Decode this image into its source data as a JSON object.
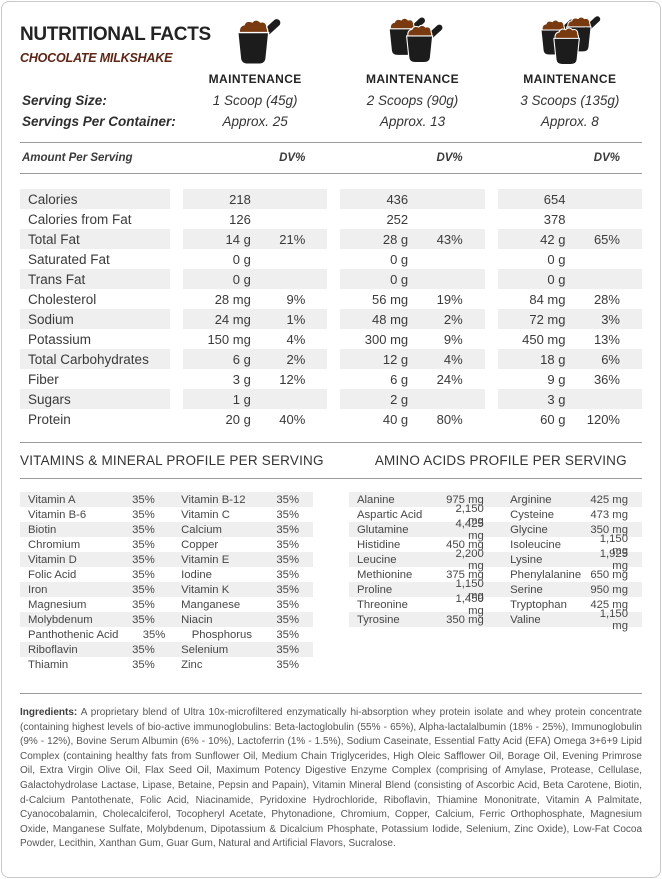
{
  "colors": {
    "accent-brown": "#5f2414",
    "powder-brown": "#7a3a10",
    "scoop-black": "#1c1c1c",
    "row-shade": "#efefef",
    "rule-gray": "#9b9b9b",
    "text-gray": "#3c3c3c"
  },
  "header": {
    "title": "NUTRITIONAL FACTS",
    "subtitle": "CHOCOLATE MILKSHAKE",
    "serving_size_label": "Serving Size:",
    "servings_per_container_label": "Servings Per Container:",
    "columns": [
      {
        "tier": "MAINTENANCE",
        "scoops": 1,
        "serving_size": "1 Scoop (45g)",
        "servings_per_container": "Approx. 25"
      },
      {
        "tier": "MAINTENANCE",
        "scoops": 2,
        "serving_size": "2 Scoops (90g)",
        "servings_per_container": "Approx. 13"
      },
      {
        "tier": "MAINTENANCE",
        "scoops": 3,
        "serving_size": "3 Scoops (135g)",
        "servings_per_container": "Approx. 8"
      }
    ]
  },
  "nutrition_table": {
    "header_label": "Amount Per Serving",
    "dv_label": "DV%",
    "rows": [
      {
        "label": "Calories",
        "cols": [
          {
            "value": "218",
            "dv": ""
          },
          {
            "value": "436",
            "dv": ""
          },
          {
            "value": "654",
            "dv": ""
          }
        ]
      },
      {
        "label": "Calories from Fat",
        "cols": [
          {
            "value": "126",
            "dv": ""
          },
          {
            "value": "252",
            "dv": ""
          },
          {
            "value": "378",
            "dv": ""
          }
        ]
      },
      {
        "label": "Total Fat",
        "cols": [
          {
            "value": "14 g",
            "dv": "21%"
          },
          {
            "value": "28 g",
            "dv": "43%"
          },
          {
            "value": "42 g",
            "dv": "65%"
          }
        ]
      },
      {
        "label": "Saturated Fat",
        "cols": [
          {
            "value": "0 g",
            "dv": ""
          },
          {
            "value": "0 g",
            "dv": ""
          },
          {
            "value": "0 g",
            "dv": ""
          }
        ]
      },
      {
        "label": "Trans Fat",
        "cols": [
          {
            "value": "0 g",
            "dv": ""
          },
          {
            "value": "0 g",
            "dv": ""
          },
          {
            "value": "0 g",
            "dv": ""
          }
        ]
      },
      {
        "label": "Cholesterol",
        "cols": [
          {
            "value": "28 mg",
            "dv": "9%"
          },
          {
            "value": "56 mg",
            "dv": "19%"
          },
          {
            "value": "84 mg",
            "dv": "28%"
          }
        ]
      },
      {
        "label": "Sodium",
        "cols": [
          {
            "value": "24 mg",
            "dv": "1%"
          },
          {
            "value": "48 mg",
            "dv": "2%"
          },
          {
            "value": "72 mg",
            "dv": "3%"
          }
        ]
      },
      {
        "label": "Potassium",
        "cols": [
          {
            "value": "150 mg",
            "dv": "4%"
          },
          {
            "value": "300 mg",
            "dv": "9%"
          },
          {
            "value": "450 mg",
            "dv": "13%"
          }
        ]
      },
      {
        "label": "Total Carbohydrates",
        "cols": [
          {
            "value": "6 g",
            "dv": "2%"
          },
          {
            "value": "12 g",
            "dv": "4%"
          },
          {
            "value": "18 g",
            "dv": "6%"
          }
        ]
      },
      {
        "label": "Fiber",
        "cols": [
          {
            "value": "3 g",
            "dv": "12%"
          },
          {
            "value": "6 g",
            "dv": "24%"
          },
          {
            "value": "9 g",
            "dv": "36%"
          }
        ]
      },
      {
        "label": "Sugars",
        "cols": [
          {
            "value": "1 g",
            "dv": ""
          },
          {
            "value": "2 g",
            "dv": ""
          },
          {
            "value": "3 g",
            "dv": ""
          }
        ]
      },
      {
        "label": "Protein",
        "cols": [
          {
            "value": "20 g",
            "dv": "40%"
          },
          {
            "value": "40 g",
            "dv": "80%"
          },
          {
            "value": "60 g",
            "dv": "120%"
          }
        ]
      }
    ]
  },
  "vitamins": {
    "heading": "VITAMINS & MINERAL PROFILE PER SERVING",
    "rows": [
      [
        {
          "name": "Vitamin A",
          "value": "35%"
        },
        {
          "name": "Vitamin B-12",
          "value": "35%"
        }
      ],
      [
        {
          "name": "Vitamin B-6",
          "value": "35%"
        },
        {
          "name": "Vitamin C",
          "value": "35%"
        }
      ],
      [
        {
          "name": "Biotin",
          "value": "35%"
        },
        {
          "name": "Calcium",
          "value": "35%"
        }
      ],
      [
        {
          "name": "Chromium",
          "value": "35%"
        },
        {
          "name": "Copper",
          "value": "35%"
        }
      ],
      [
        {
          "name": "Vitamin D",
          "value": "35%"
        },
        {
          "name": "Vitamin E",
          "value": "35%"
        }
      ],
      [
        {
          "name": "Folic Acid",
          "value": "35%"
        },
        {
          "name": "Iodine",
          "value": "35%"
        }
      ],
      [
        {
          "name": "Iron",
          "value": "35%"
        },
        {
          "name": "Vitamin K",
          "value": "35%"
        }
      ],
      [
        {
          "name": "Magnesium",
          "value": "35%"
        },
        {
          "name": "Manganese",
          "value": "35%"
        }
      ],
      [
        {
          "name": "Molybdenum",
          "value": "35%"
        },
        {
          "name": "Niacin",
          "value": "35%"
        }
      ],
      [
        {
          "name": "Panthothenic Acid",
          "value": "35%"
        },
        {
          "name": "Phosphorus",
          "value": "35%"
        }
      ],
      [
        {
          "name": "Riboflavin",
          "value": "35%"
        },
        {
          "name": "Selenium",
          "value": "35%"
        }
      ],
      [
        {
          "name": "Thiamin",
          "value": "35%"
        },
        {
          "name": "Zinc",
          "value": "35%"
        }
      ]
    ]
  },
  "amino_acids": {
    "heading": "AMINO ACIDS PROFILE PER SERVING",
    "rows": [
      [
        {
          "name": "Alanine",
          "value": "975 mg"
        },
        {
          "name": "Arginine",
          "value": "425 mg"
        }
      ],
      [
        {
          "name": "Aspartic Acid",
          "value": "2,150 mg"
        },
        {
          "name": "Cysteine",
          "value": "473 mg"
        }
      ],
      [
        {
          "name": "Glutamine",
          "value": "4,425 mg"
        },
        {
          "name": "Glycine",
          "value": "350 mg"
        }
      ],
      [
        {
          "name": "Histidine",
          "value": "450 mg"
        },
        {
          "name": "Isoleucine",
          "value": "1,150 mg"
        }
      ],
      [
        {
          "name": "Leucine",
          "value": "2,200 mg"
        },
        {
          "name": "Lysine",
          "value": "1,925 mg"
        }
      ],
      [
        {
          "name": "Methionine",
          "value": "375 mg"
        },
        {
          "name": "Phenylalanine",
          "value": "650 mg"
        }
      ],
      [
        {
          "name": "Proline",
          "value": "1,150 mg"
        },
        {
          "name": "Serine",
          "value": "950 mg"
        }
      ],
      [
        {
          "name": "Threonine",
          "value": "1,450 mg"
        },
        {
          "name": "Tryptophan",
          "value": "425 mg"
        }
      ],
      [
        {
          "name": "Tyrosine",
          "value": "350 mg"
        },
        {
          "name": "Valine",
          "value": "1,150 mg"
        }
      ]
    ]
  },
  "ingredients": {
    "label": "Ingredients:",
    "text": "A proprietary blend of Ultra 10x-microfiltered enzymatically hi-absorption whey protein isolate and whey protein concentrate (containing highest levels of bio-active immunoglobulins:  Beta-lactoglobulin (55% - 65%), Alpha-lactalalbumin (18% - 25%), Immunoglobulin (9% - 12%), Bovine Serum Albumin (6% - 10%), Lactoferrin (1% - 1.5%), Sodium Caseinate, Essential Fatty Acid (EFA) Omega 3+6+9 Lipid Complex (containing healthy fats from Sunflower Oil, Medium Chain Triglycerides, High Oleic Safflower Oil, Borage Oil, Evening Primrose Oil, Extra Virgin Olive Oil, Flax Seed Oil, Maximum Potency Digestive Enzyme Complex (comprising of Amylase, Protease, Cellulase, Galactohydrolase Lactase, Lipase, Betaine, Pepsin and Papain), Vitamin Mineral Blend (consisting of Ascorbic Acid, Beta Carotene, Biotin, d-Calcium Pantothenate, Folic Acid, Niacinamide, Pyridoxine Hydrochloride, Riboflavin, Thiamine Mononitrate, Vitamin A Palmitate, Cyanocobalamin, Cholecalciferol, Tocopheryl Acetate, Phytonadione, Chromium, Copper, Calcium, Ferric Orthophosphate, Magnesium Oxide, Manganese Sulfate, Molybdenum, Dipotassium & Dicalcium Phosphate, Potassium Iodide, Selenium, Zinc Oxide), Low-Fat Cocoa Powder, Lecithin, Xanthan Gum, Guar Gum, Natural and Artificial Flavors, Sucralose."
  }
}
